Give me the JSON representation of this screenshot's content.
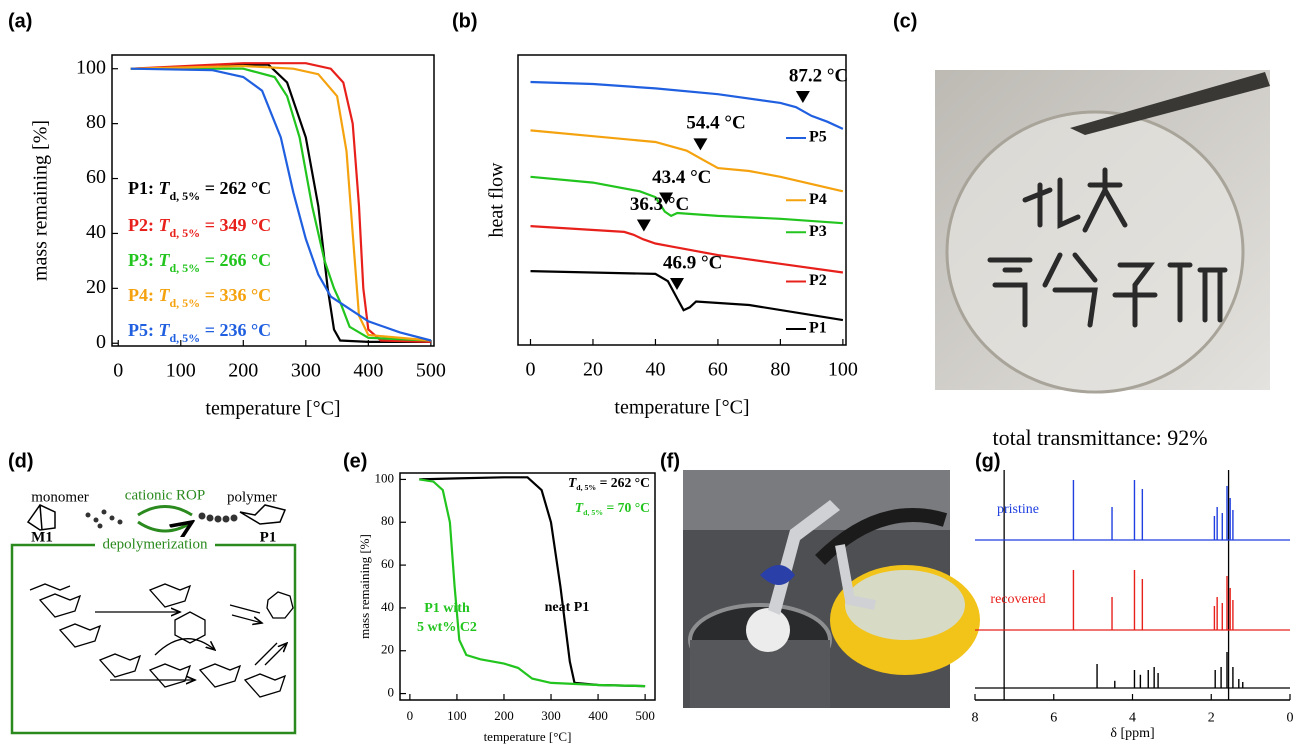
{
  "panel_labels": [
    "(a)",
    "(b)",
    "(c)",
    "(d)",
    "(e)",
    "(f)",
    "(g)"
  ],
  "photo_caption": "total transmittance: 92%",
  "scheme": {
    "monomer": "monomer",
    "catalysis": "cationic ROP",
    "polymer": "polymer",
    "monomer_name": "M1",
    "polymer_name": "P1",
    "depolymerization": "depolymerization"
  },
  "chart_data": [
    {
      "type": "line",
      "xlabel": "temperature [°C]",
      "ylabel": "mass remaining [%]",
      "xlim": [
        -10,
        505
      ],
      "ylim": [
        -1,
        105
      ],
      "xticks": [
        0,
        100,
        200,
        300,
        400,
        500
      ],
      "yticks": [
        0,
        20,
        40,
        60,
        80,
        100
      ],
      "series": [
        {
          "name": "P1",
          "color": "#000000",
          "x": [
            20,
            100,
            200,
            240,
            270,
            300,
            320,
            335,
            345,
            355,
            400,
            500
          ],
          "values": [
            100,
            100.5,
            101.5,
            101.5,
            95,
            75,
            50,
            20,
            5,
            1,
            0.5,
            0.5
          ],
          "annotation": [
            "P1: ",
            "T",
            "d, 5%",
            " =   262 °C"
          ]
        },
        {
          "name": "P2",
          "color": "#e8201c",
          "x": [
            20,
            200,
            300,
            340,
            360,
            375,
            385,
            392,
            400,
            420,
            500
          ],
          "values": [
            100,
            102,
            102,
            100,
            95,
            80,
            50,
            20,
            5,
            1,
            0.5
          ],
          "annotation": [
            "P2: ",
            "T",
            "d, 5%",
            " =   349 °C"
          ]
        },
        {
          "name": "P3",
          "color": "#22c41e",
          "x": [
            20,
            200,
            250,
            270,
            290,
            310,
            330,
            345,
            355,
            370,
            400,
            500
          ],
          "values": [
            100,
            100,
            97,
            90,
            75,
            50,
            30,
            20,
            15,
            6,
            2,
            1
          ],
          "annotation": [
            "P3: ",
            "T",
            "d, 5%",
            " =   266 °C"
          ]
        },
        {
          "name": "P4",
          "color": "#f5a20f",
          "x": [
            20,
            200,
            280,
            320,
            350,
            365,
            375,
            385,
            400,
            500
          ],
          "values": [
            100,
            101,
            100,
            98,
            90,
            70,
            40,
            10,
            3,
            1
          ],
          "annotation": [
            "P4: ",
            "T",
            "d, 5%",
            " =   336 °C"
          ]
        },
        {
          "name": "P5",
          "color": "#1f5fe0",
          "x": [
            20,
            150,
            200,
            230,
            260,
            280,
            300,
            320,
            340,
            360,
            400,
            450,
            500
          ],
          "values": [
            100,
            99.5,
            97,
            92,
            75,
            55,
            38,
            25,
            17,
            14,
            8,
            4,
            1
          ],
          "annotation": [
            "P5: ",
            "T",
            "d, 5%",
            " =   236 °C"
          ]
        }
      ]
    },
    {
      "type": "line",
      "xlabel": "temperature [°C]",
      "ylabel": "heat flow",
      "xlim": [
        -4,
        101
      ],
      "ylim": [
        0,
        100
      ],
      "xticks": [
        0,
        20,
        40,
        60,
        80,
        100
      ],
      "series": [
        {
          "name": "P5",
          "color": "#1f5fe0",
          "x": [
            0,
            20,
            40,
            60,
            80,
            85,
            90,
            95,
            100
          ],
          "values": [
            90.7,
            90,
            88.5,
            86.5,
            83.5,
            82,
            79,
            77,
            74.5
          ],
          "tg": {
            "value": 87.2,
            "label": "87.2 °C"
          }
        },
        {
          "name": "P4",
          "color": "#f5a20f",
          "x": [
            0,
            20,
            40,
            50,
            55,
            60,
            70,
            80,
            100
          ],
          "values": [
            74,
            72,
            70,
            67,
            64,
            61,
            60,
            58,
            53
          ],
          "tg": {
            "value": 54.4,
            "label": "54.4 °C"
          }
        },
        {
          "name": "P3",
          "color": "#22c41e",
          "x": [
            0,
            20,
            35,
            40,
            43,
            45,
            47,
            60,
            80,
            100
          ],
          "values": [
            58,
            56,
            53,
            51,
            46,
            44.5,
            45.5,
            44.5,
            43.5,
            42
          ],
          "tg": {
            "value": 43.4,
            "label": "43.4 °C"
          }
        },
        {
          "name": "P2",
          "color": "#e8201c",
          "x": [
            0,
            30,
            33,
            36,
            40,
            45,
            60,
            80,
            100
          ],
          "values": [
            41,
            39,
            38,
            36.5,
            35,
            34,
            31,
            28,
            25
          ],
          "tg": {
            "value": 36.3,
            "label": "36.3 °C"
          }
        },
        {
          "name": "P1",
          "color": "#000000",
          "x": [
            0,
            40,
            44,
            47,
            49,
            51,
            53,
            70,
            100
          ],
          "values": [
            25.5,
            24.5,
            22,
            16,
            12,
            13,
            15,
            13.8,
            8.6
          ],
          "tg": {
            "value": 46.9,
            "label": "46.9 °C"
          }
        }
      ]
    },
    {
      "type": "line",
      "xlabel": "temperature [°C]",
      "ylabel": "mass remaining [%]",
      "xlim": [
        -21,
        521
      ],
      "ylim": [
        -3,
        103
      ],
      "xticks": [
        0,
        100,
        200,
        300,
        400,
        500
      ],
      "yticks": [
        0,
        20,
        40,
        60,
        80,
        100
      ],
      "series": [
        {
          "name": [
            "neat P1"
          ],
          "color": "#000000",
          "x": [
            20,
            100,
            200,
            250,
            280,
            300,
            320,
            340,
            350,
            400,
            500
          ],
          "values": [
            100,
            100.5,
            101,
            101,
            95,
            80,
            50,
            15,
            5,
            4,
            3.5
          ],
          "annotation": [
            "T",
            "d, 5%",
            " = 262 °C"
          ]
        },
        {
          "name": [
            "P1 with",
            "5 wt% C2"
          ],
          "color": "#22c41e",
          "x": [
            20,
            50,
            70,
            85,
            95,
            105,
            120,
            150,
            200,
            230,
            260,
            300,
            400,
            500
          ],
          "values": [
            100,
            99,
            95,
            80,
            50,
            25,
            18,
            16,
            14,
            12,
            7,
            5,
            4,
            3.5
          ],
          "annotation": [
            "T",
            "d, 5%",
            " =    70 °C"
          ]
        }
      ]
    },
    {
      "type": "spectrum",
      "xlabel": "δ [ppm]",
      "xlim": [
        8,
        0
      ],
      "xticks": [
        8,
        6,
        4,
        2,
        0
      ],
      "reference_lines": [
        7.26,
        1.56
      ],
      "series": [
        {
          "name": "pristine",
          "color": "#1f3fe0",
          "x": [
            5.5,
            4.52,
            3.95,
            3.75,
            1.92,
            1.85,
            1.72,
            1.6,
            1.52,
            1.45
          ],
          "values": [
            100,
            55,
            100,
            85,
            40,
            55,
            45,
            90,
            70,
            50
          ]
        },
        {
          "name": "recovered",
          "color": "#e8201c",
          "x": [
            5.5,
            4.52,
            3.95,
            3.75,
            1.92,
            1.85,
            1.72,
            1.6,
            1.52,
            1.45
          ],
          "values": [
            100,
            55,
            100,
            85,
            40,
            55,
            45,
            90,
            70,
            50
          ]
        },
        {
          "color": "#000000",
          "x": [
            4.9,
            4.45,
            3.95,
            3.8,
            3.6,
            3.45,
            3.35,
            1.9,
            1.75,
            1.6,
            1.45,
            1.3,
            1.2
          ],
          "values": [
            40,
            12,
            30,
            22,
            30,
            35,
            25,
            30,
            35,
            60,
            35,
            15,
            10
          ]
        }
      ]
    }
  ]
}
